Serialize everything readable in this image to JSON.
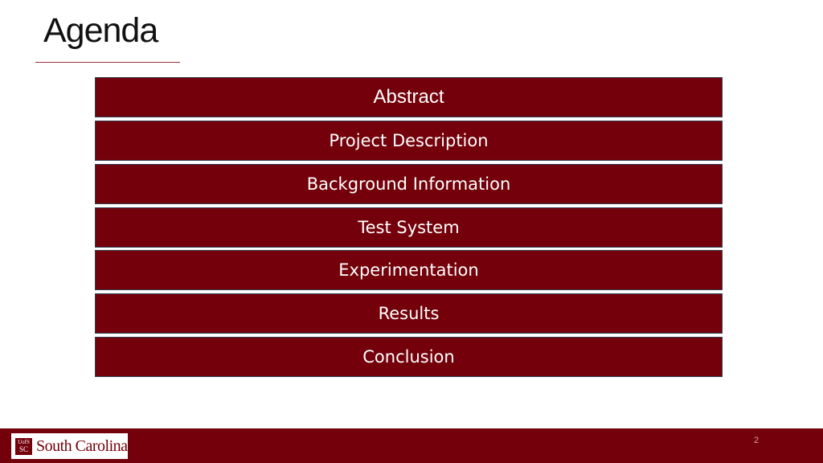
{
  "slide": {
    "title": "Agenda",
    "page_number": "2"
  },
  "agenda": {
    "items": [
      {
        "label": "Abstract"
      },
      {
        "label": "Project Description"
      },
      {
        "label": "Background Information"
      },
      {
        "label": "Test System"
      },
      {
        "label": "Experimentation"
      },
      {
        "label": "Results"
      },
      {
        "label": "Conclusion"
      }
    ]
  },
  "footer": {
    "logo_mark_top": "UofS",
    "logo_mark_bottom": "SC",
    "logo_text": "South Carolina"
  },
  "colors": {
    "brand": "#73000a",
    "box_border": "#2f3f4f"
  }
}
